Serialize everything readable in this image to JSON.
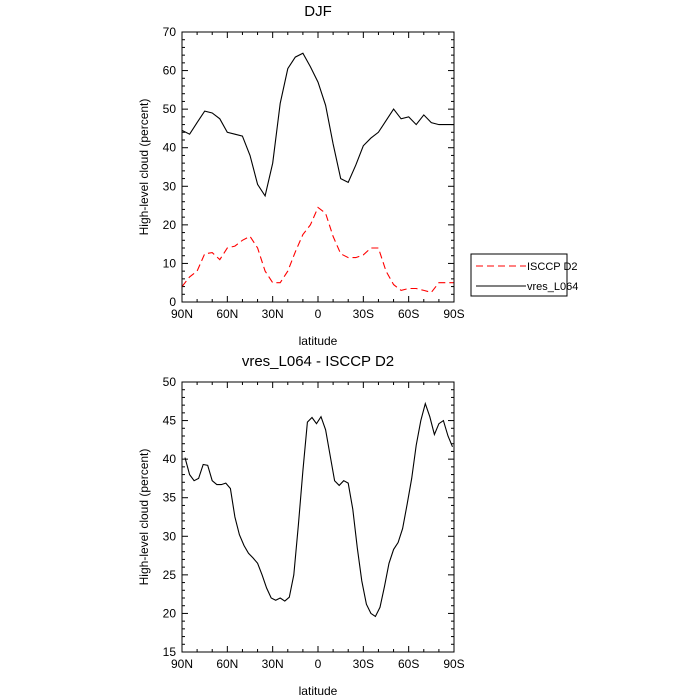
{
  "chart_data": [
    {
      "type": "line",
      "title": "DJF",
      "xlabel": "latitude",
      "ylabel": "High-level cloud (percent)",
      "xlim": [
        -90,
        90
      ],
      "ylim": [
        0,
        70
      ],
      "xticks": [
        -90,
        -60,
        -30,
        0,
        30,
        60,
        90
      ],
      "xtick_labels": [
        "90N",
        "60N",
        "30N",
        "0",
        "30S",
        "60S",
        "90S"
      ],
      "yticks": [
        0,
        10,
        20,
        30,
        40,
        50,
        60,
        70
      ],
      "ytick_labels": [
        "0",
        "10",
        "20",
        "30",
        "40",
        "50",
        "60",
        "70"
      ],
      "legend_position": "right",
      "series": [
        {
          "name": "ISCCP D2",
          "color": "#ff0000",
          "dash": "dashed",
          "x": [
            -90,
            -85,
            -80,
            -75,
            -70,
            -65,
            -60,
            -55,
            -50,
            -45,
            -40,
            -35,
            -30,
            -25,
            -20,
            -15,
            -10,
            -5,
            0,
            5,
            10,
            15,
            20,
            25,
            30,
            35,
            40,
            45,
            50,
            55,
            60,
            65,
            70,
            75,
            80,
            85,
            90
          ],
          "values": [
            4,
            6.5,
            8,
            12.5,
            12.8,
            11,
            14,
            14.5,
            16,
            17,
            14,
            8,
            5,
            5,
            8,
            13,
            17.5,
            20,
            24.5,
            23,
            17,
            12.5,
            11.5,
            11.5,
            12.2,
            14,
            14,
            8,
            4.5,
            3,
            3.5,
            3.5,
            3,
            2.5,
            5,
            5,
            5
          ]
        },
        {
          "name": "vres_L064",
          "color": "#000000",
          "dash": "solid",
          "x": [
            -90,
            -85,
            -80,
            -75,
            -70,
            -65,
            -60,
            -55,
            -50,
            -45,
            -40,
            -35,
            -30,
            -25,
            -20,
            -15,
            -10,
            -5,
            0,
            5,
            10,
            15,
            20,
            25,
            30,
            35,
            40,
            45,
            50,
            55,
            60,
            65,
            70,
            75,
            80,
            85,
            90
          ],
          "values": [
            44.5,
            43.5,
            46.5,
            49.5,
            49,
            47.5,
            44,
            43.5,
            43,
            38,
            30.5,
            27.5,
            36,
            51.5,
            60.5,
            63.5,
            64.5,
            61,
            57,
            51,
            41,
            32,
            31,
            35.5,
            40.5,
            42.5,
            44,
            47,
            50,
            47.5,
            48,
            46,
            48.5,
            46.5,
            46,
            46,
            46
          ]
        }
      ]
    },
    {
      "type": "line",
      "title": "vres_L064 - ISCCP D2",
      "xlabel": "latitude",
      "ylabel": "High-level cloud (percent)",
      "xlim": [
        -90,
        90
      ],
      "ylim": [
        15,
        50
      ],
      "xticks": [
        -90,
        -60,
        -30,
        0,
        30,
        60,
        90
      ],
      "xtick_labels": [
        "90N",
        "60N",
        "30N",
        "0",
        "30S",
        "60S",
        "90S"
      ],
      "yticks": [
        15,
        20,
        25,
        30,
        35,
        40,
        45,
        50
      ],
      "ytick_labels": [
        "15",
        "20",
        "25",
        "30",
        "35",
        "40",
        "45",
        "50"
      ],
      "series": [
        {
          "name": "vres_L064 - ISCCP D2",
          "color": "#000000",
          "dash": "solid",
          "x": [
            -88,
            -85,
            -82,
            -79,
            -76,
            -73,
            -70,
            -67,
            -64,
            -61,
            -58,
            -55,
            -52,
            -49,
            -46,
            -43,
            -40,
            -37,
            -34,
            -31,
            -28,
            -25,
            -22,
            -19,
            -16,
            -13,
            -10,
            -7,
            -4,
            -1,
            2,
            5,
            8,
            11,
            14,
            17,
            20,
            23,
            26,
            29,
            32,
            35,
            38,
            41,
            44,
            47,
            50,
            53,
            56,
            59,
            62,
            65,
            68,
            71,
            74,
            77,
            80,
            83,
            86,
            89
          ],
          "values": [
            40.2,
            38,
            37.2,
            37.5,
            39.3,
            39.2,
            37.2,
            36.7,
            36.7,
            36.9,
            36.2,
            32.5,
            30.2,
            28.8,
            27.8,
            27.2,
            26.5,
            25,
            23.3,
            22,
            21.7,
            22,
            21.6,
            22.1,
            25,
            31.5,
            38.5,
            44.8,
            45.4,
            44.6,
            45.5,
            43.8,
            40.5,
            37.2,
            36.6,
            37.2,
            36.9,
            33.5,
            28.5,
            24.2,
            21.2,
            20,
            19.6,
            20.8,
            23.5,
            26.5,
            28.3,
            29.2,
            31,
            34.2,
            37.5,
            41.8,
            45,
            47.2,
            45.5,
            43.2,
            44.6,
            45,
            43,
            41.6
          ]
        }
      ]
    }
  ]
}
